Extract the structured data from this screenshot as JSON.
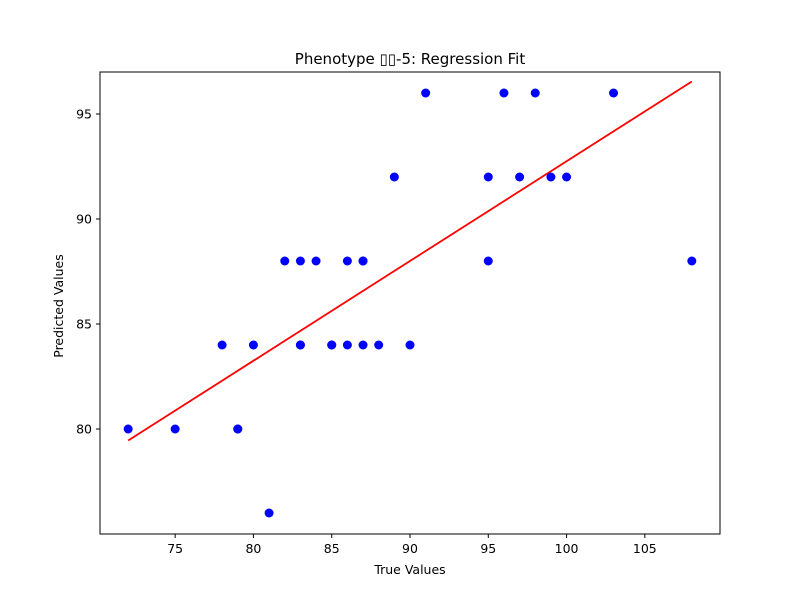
{
  "chart_data": {
    "type": "scatter",
    "title": "Phenotype  ▯▯-5: Regression Fit",
    "xlabel": "True Values",
    "ylabel": "Predicted Values",
    "xlim": [
      70.2,
      109.8
    ],
    "ylim": [
      75.0,
      97.0
    ],
    "xticks": [
      75,
      80,
      85,
      90,
      95,
      100,
      105
    ],
    "yticks": [
      80,
      85,
      90,
      95
    ],
    "grid": false,
    "legend": "none",
    "point_color": "#0000ff",
    "line_color": "#ff0000",
    "points": [
      {
        "x": 72,
        "y": 80
      },
      {
        "x": 75,
        "y": 80
      },
      {
        "x": 78,
        "y": 84
      },
      {
        "x": 79,
        "y": 80
      },
      {
        "x": 79,
        "y": 80
      },
      {
        "x": 80,
        "y": 84
      },
      {
        "x": 81,
        "y": 76
      },
      {
        "x": 82,
        "y": 88
      },
      {
        "x": 83,
        "y": 88
      },
      {
        "x": 83,
        "y": 84
      },
      {
        "x": 83,
        "y": 84
      },
      {
        "x": 84,
        "y": 88
      },
      {
        "x": 85,
        "y": 84
      },
      {
        "x": 85,
        "y": 84
      },
      {
        "x": 86,
        "y": 88
      },
      {
        "x": 86,
        "y": 84
      },
      {
        "x": 87,
        "y": 88
      },
      {
        "x": 87,
        "y": 88
      },
      {
        "x": 87,
        "y": 84
      },
      {
        "x": 88,
        "y": 84
      },
      {
        "x": 89,
        "y": 92
      },
      {
        "x": 90,
        "y": 84
      },
      {
        "x": 91,
        "y": 96
      },
      {
        "x": 95,
        "y": 92
      },
      {
        "x": 95,
        "y": 88
      },
      {
        "x": 96,
        "y": 96
      },
      {
        "x": 97,
        "y": 92
      },
      {
        "x": 98,
        "y": 96
      },
      {
        "x": 99,
        "y": 92
      },
      {
        "x": 100,
        "y": 92
      },
      {
        "x": 103,
        "y": 96
      },
      {
        "x": 108,
        "y": 88
      }
    ],
    "fit_line": {
      "x": [
        72,
        108
      ],
      "y": [
        79.45,
        96.55
      ]
    }
  }
}
